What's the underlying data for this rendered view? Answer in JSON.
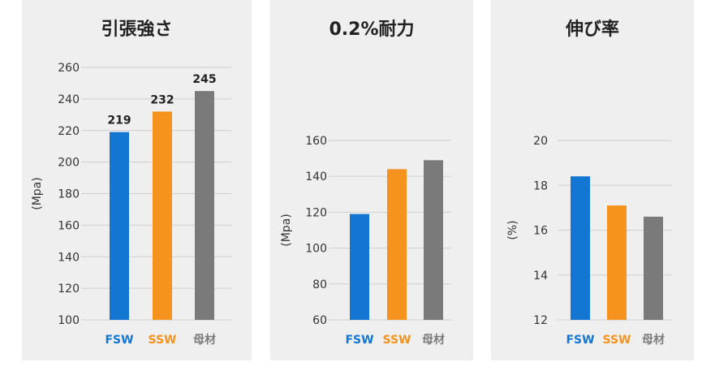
{
  "colors": {
    "FSW": "#1476d3",
    "SSW": "#f6921e",
    "母材": "#7a7a7a",
    "grid": "#cfcfcf"
  },
  "chart_data": [
    {
      "type": "bar",
      "title": "引張強さ",
      "ylabel": "(Mpa)",
      "categories": [
        "FSW",
        "SSW",
        "母材"
      ],
      "values": [
        219,
        232,
        245
      ],
      "data_labels": [
        "219",
        "232",
        "245"
      ],
      "yticks": [
        100,
        120,
        140,
        160,
        180,
        200,
        220,
        240,
        260
      ],
      "ylim": [
        100,
        260
      ],
      "grid": true
    },
    {
      "type": "bar",
      "title": "0.2%耐力",
      "ylabel": "(Mpa)",
      "categories": [
        "FSW",
        "SSW",
        "母材"
      ],
      "values": [
        119,
        144,
        149
      ],
      "yticks": [
        60,
        80,
        100,
        120,
        140,
        160
      ],
      "ylim": [
        60,
        160
      ],
      "grid": true
    },
    {
      "type": "bar",
      "title": "伸び率",
      "ylabel": "(%)",
      "categories": [
        "FSW",
        "SSW",
        "母材"
      ],
      "values": [
        18.4,
        17.1,
        16.6
      ],
      "yticks": [
        12,
        14,
        16,
        18,
        20
      ],
      "ylim": [
        12,
        20
      ],
      "grid": true
    }
  ]
}
